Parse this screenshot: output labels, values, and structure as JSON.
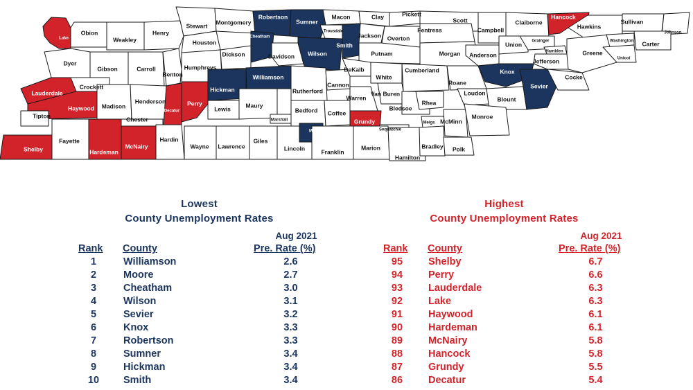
{
  "colors": {
    "lowest": "#1b355e",
    "highest": "#d2232a",
    "neutral": "#ffffff",
    "border": "#1a1a1a"
  },
  "map": {
    "counties": [
      {
        "name": "Lake",
        "category": "highest"
      },
      {
        "name": "Obion",
        "category": "neutral"
      },
      {
        "name": "Weakley",
        "category": "neutral"
      },
      {
        "name": "Henry",
        "category": "neutral"
      },
      {
        "name": "Stewart",
        "category": "neutral"
      },
      {
        "name": "Montgomery",
        "category": "neutral"
      },
      {
        "name": "Robertson",
        "category": "lowest"
      },
      {
        "name": "Sumner",
        "category": "lowest"
      },
      {
        "name": "Macon",
        "category": "neutral"
      },
      {
        "name": "Clay",
        "category": "neutral"
      },
      {
        "name": "Pickett",
        "category": "neutral"
      },
      {
        "name": "Scott",
        "category": "neutral"
      },
      {
        "name": "Campbell",
        "category": "neutral"
      },
      {
        "name": "Claiborne",
        "category": "neutral"
      },
      {
        "name": "Hancock",
        "category": "highest"
      },
      {
        "name": "Hawkins",
        "category": "neutral"
      },
      {
        "name": "Sullivan",
        "category": "neutral"
      },
      {
        "name": "Johnson",
        "category": "neutral"
      },
      {
        "name": "Dyer",
        "category": "neutral"
      },
      {
        "name": "Gibson",
        "category": "neutral"
      },
      {
        "name": "Carroll",
        "category": "neutral"
      },
      {
        "name": "Benton",
        "category": "neutral"
      },
      {
        "name": "Houston",
        "category": "neutral"
      },
      {
        "name": "Humphreys",
        "category": "neutral"
      },
      {
        "name": "Dickson",
        "category": "neutral"
      },
      {
        "name": "Cheatham",
        "category": "lowest"
      },
      {
        "name": "Davidson",
        "category": "neutral"
      },
      {
        "name": "Trousdale",
        "category": "neutral"
      },
      {
        "name": "Wilson",
        "category": "lowest"
      },
      {
        "name": "Smith",
        "category": "lowest"
      },
      {
        "name": "Jackson",
        "category": "neutral"
      },
      {
        "name": "Overton",
        "category": "neutral"
      },
      {
        "name": "Fentress",
        "category": "neutral"
      },
      {
        "name": "Putnam",
        "category": "neutral"
      },
      {
        "name": "Morgan",
        "category": "neutral"
      },
      {
        "name": "Anderson",
        "category": "neutral"
      },
      {
        "name": "Union",
        "category": "neutral"
      },
      {
        "name": "Grainger",
        "category": "neutral"
      },
      {
        "name": "Hamblen",
        "category": "neutral"
      },
      {
        "name": "Jefferson",
        "category": "neutral"
      },
      {
        "name": "Greene",
        "category": "neutral"
      },
      {
        "name": "Washington",
        "category": "neutral"
      },
      {
        "name": "Unicoi",
        "category": "neutral"
      },
      {
        "name": "Carter",
        "category": "neutral"
      },
      {
        "name": "Lauderdale",
        "category": "highest"
      },
      {
        "name": "Crockett",
        "category": "neutral"
      },
      {
        "name": "Haywood",
        "category": "highest"
      },
      {
        "name": "Madison",
        "category": "neutral"
      },
      {
        "name": "Henderson",
        "category": "neutral"
      },
      {
        "name": "Decatur",
        "category": "highest"
      },
      {
        "name": "Perry",
        "category": "highest"
      },
      {
        "name": "Hickman",
        "category": "lowest"
      },
      {
        "name": "Williamson",
        "category": "lowest"
      },
      {
        "name": "Rutherford",
        "category": "neutral"
      },
      {
        "name": "Cannon",
        "category": "neutral"
      },
      {
        "name": "DeKalb",
        "category": "neutral"
      },
      {
        "name": "White",
        "category": "neutral"
      },
      {
        "name": "Cumberland",
        "category": "neutral"
      },
      {
        "name": "Roane",
        "category": "neutral"
      },
      {
        "name": "Knox",
        "category": "lowest"
      },
      {
        "name": "Loudon",
        "category": "neutral"
      },
      {
        "name": "Blount",
        "category": "neutral"
      },
      {
        "name": "Sevier",
        "category": "lowest"
      },
      {
        "name": "Cocke",
        "category": "neutral"
      },
      {
        "name": "Tipton",
        "category": "neutral"
      },
      {
        "name": "Chester",
        "category": "neutral"
      },
      {
        "name": "Lewis",
        "category": "neutral"
      },
      {
        "name": "Maury",
        "category": "neutral"
      },
      {
        "name": "Marshall",
        "category": "neutral"
      },
      {
        "name": "Bedford",
        "category": "neutral"
      },
      {
        "name": "Coffee",
        "category": "neutral"
      },
      {
        "name": "Warren",
        "category": "neutral"
      },
      {
        "name": "Van Buren",
        "category": "neutral"
      },
      {
        "name": "Bledsoe",
        "category": "neutral"
      },
      {
        "name": "Rhea",
        "category": "neutral"
      },
      {
        "name": "Meigs",
        "category": "neutral"
      },
      {
        "name": "McMinn",
        "category": "neutral"
      },
      {
        "name": "Monroe",
        "category": "neutral"
      },
      {
        "name": "Grundy",
        "category": "highest"
      },
      {
        "name": "Sequatchie",
        "category": "neutral"
      },
      {
        "name": "Shelby",
        "category": "highest"
      },
      {
        "name": "Fayette",
        "category": "neutral"
      },
      {
        "name": "Hardeman",
        "category": "highest"
      },
      {
        "name": "McNairy",
        "category": "highest"
      },
      {
        "name": "Hardin",
        "category": "neutral"
      },
      {
        "name": "Wayne",
        "category": "neutral"
      },
      {
        "name": "Lawrence",
        "category": "neutral"
      },
      {
        "name": "Giles",
        "category": "neutral"
      },
      {
        "name": "Lincoln",
        "category": "neutral"
      },
      {
        "name": "Moore",
        "category": "lowest"
      },
      {
        "name": "Franklin",
        "category": "neutral"
      },
      {
        "name": "Marion",
        "category": "neutral"
      },
      {
        "name": "Hamilton",
        "category": "neutral"
      },
      {
        "name": "Bradley",
        "category": "neutral"
      },
      {
        "name": "Polk",
        "category": "neutral"
      }
    ]
  },
  "lowest": {
    "title_line1": "Lowest",
    "title_line2": "County Unemployment Rates",
    "period": "Aug 2021",
    "col_rank": "Rank",
    "col_county": "County",
    "col_rate": "Pre. Rate (%)",
    "rows": [
      {
        "rank": "1",
        "county": "Williamson",
        "rate": "2.6"
      },
      {
        "rank": "2",
        "county": "Moore",
        "rate": "2.7"
      },
      {
        "rank": "3",
        "county": "Cheatham",
        "rate": "3.0"
      },
      {
        "rank": "4",
        "county": "Wilson",
        "rate": "3.1"
      },
      {
        "rank": "5",
        "county": "Sevier",
        "rate": "3.2"
      },
      {
        "rank": "6",
        "county": "Knox",
        "rate": "3.3"
      },
      {
        "rank": "7",
        "county": "Robertson",
        "rate": "3.3"
      },
      {
        "rank": "8",
        "county": "Sumner",
        "rate": "3.4"
      },
      {
        "rank": "9",
        "county": "Hickman",
        "rate": "3.4"
      },
      {
        "rank": "10",
        "county": "Smith",
        "rate": "3.4"
      }
    ]
  },
  "highest": {
    "title_line1": "Highest",
    "title_line2": "County Unemployment Rates",
    "period": "Aug 2021",
    "col_rank": "Rank",
    "col_county": "County",
    "col_rate": "Pre. Rate (%)",
    "rows": [
      {
        "rank": "95",
        "county": "Shelby",
        "rate": "6.7"
      },
      {
        "rank": "94",
        "county": "Perry",
        "rate": "6.6"
      },
      {
        "rank": "93",
        "county": "Lauderdale",
        "rate": "6.3"
      },
      {
        "rank": "92",
        "county": "Lake",
        "rate": "6.3"
      },
      {
        "rank": "91",
        "county": "Haywood",
        "rate": "6.1"
      },
      {
        "rank": "90",
        "county": "Hardeman",
        "rate": "6.1"
      },
      {
        "rank": "89",
        "county": "McNairy",
        "rate": "5.8"
      },
      {
        "rank": "88",
        "county": "Hancock",
        "rate": "5.8"
      },
      {
        "rank": "87",
        "county": "Grundy",
        "rate": "5.5"
      },
      {
        "rank": "86",
        "county": "Decatur",
        "rate": "5.4"
      }
    ]
  }
}
